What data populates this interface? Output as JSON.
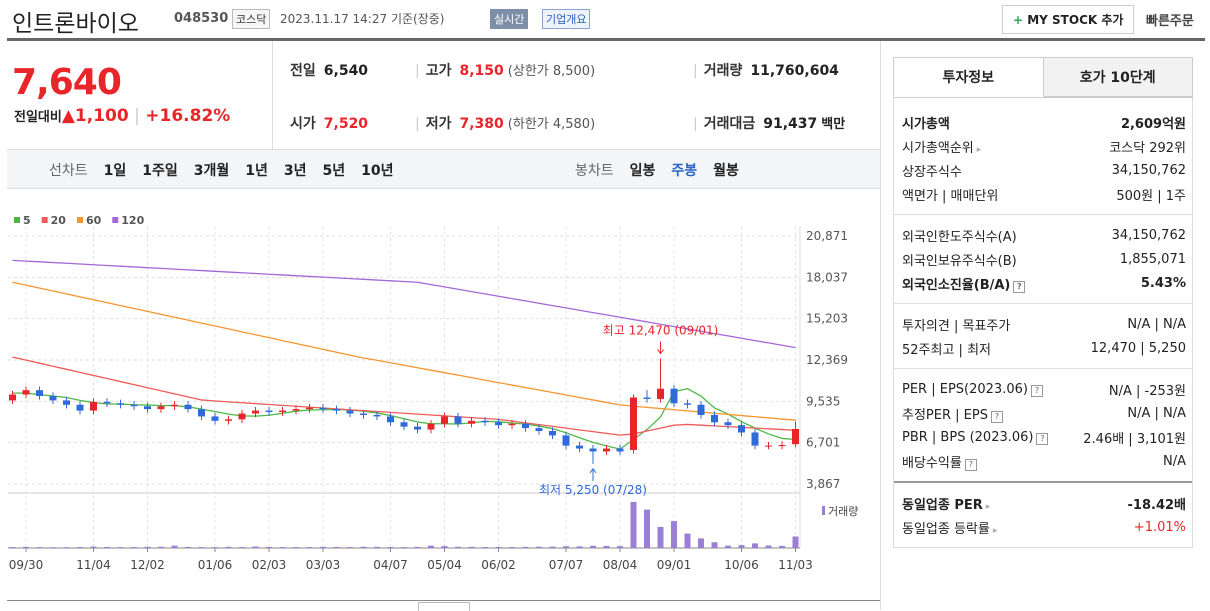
{
  "header": {
    "name": "인트론바이오",
    "code": "048530",
    "market": "코스닥",
    "datetime": "2023.11.17 14:27",
    "status": "기준(장중)",
    "realtime": "실시간",
    "company": "기업개요",
    "mystock": "MY STOCK 추가",
    "quick_order": "빠른주문"
  },
  "price": {
    "current": "7,640",
    "change_label": "전일대비",
    "change": "1,100",
    "rate": "+16.82%"
  },
  "quote": [
    [
      {
        "label": "전일",
        "value": "6,540"
      },
      {
        "label": "고가",
        "value": "8,150",
        "note": "(상한가 8,500)"
      },
      {
        "label": "거래량",
        "value": "11,760,604"
      }
    ],
    [
      {
        "label": "시가",
        "value": "7,520"
      },
      {
        "label": "저가",
        "value": "7,380",
        "note": "(하한가 4,580)"
      },
      {
        "label": "거래대금",
        "value": "91,437",
        "note": "백만"
      }
    ]
  ],
  "period_bar": {
    "line_label": "선차트",
    "line_periods": [
      "1일",
      "1주일",
      "3개월",
      "1년",
      "3년",
      "5년",
      "10년"
    ],
    "candle_label": "봉차트",
    "candle_periods": [
      "일봉",
      "주봉",
      "월봉"
    ],
    "active_candle": 1
  },
  "chart_data": {
    "type": "candlestick",
    "up_color": "#e8262a",
    "down_color": "#2e6bd9",
    "categories": [
      null,
      "09/30",
      null,
      null,
      null,
      null,
      "11/04",
      null,
      null,
      null,
      "12/02",
      null,
      null,
      null,
      null,
      "01/06",
      null,
      null,
      null,
      "02/03",
      null,
      null,
      null,
      "03/03",
      null,
      null,
      null,
      null,
      "04/07",
      null,
      null,
      null,
      "05/04",
      null,
      null,
      null,
      "06/02",
      null,
      null,
      null,
      null,
      "07/07",
      null,
      null,
      null,
      "08/04",
      null,
      null,
      null,
      "09/01",
      null,
      null,
      null,
      null,
      "10/06",
      null,
      null,
      null,
      "11/03"
    ],
    "open": [
      9600,
      10000,
      10300,
      9900,
      9600,
      9300,
      8900,
      9500,
      9400,
      9300,
      9200,
      9000,
      9200,
      9300,
      9000,
      8500,
      8200,
      8300,
      8700,
      8900,
      8800,
      8900,
      9000,
      9100,
      9000,
      8900,
      8700,
      8600,
      8500,
      8100,
      7800,
      7600,
      8000,
      8500,
      8000,
      8200,
      8100,
      7900,
      8000,
      7700,
      7500,
      7200,
      6500,
      6300,
      6100,
      6300,
      6200,
      9800,
      9700,
      10400,
      9400,
      9300,
      8600,
      8100,
      7900,
      7400,
      6500,
      6500,
      6600
    ],
    "high": [
      10250,
      10550,
      10550,
      10150,
      9850,
      9550,
      9750,
      9750,
      9650,
      9550,
      9450,
      9450,
      9550,
      9550,
      9250,
      8750,
      8550,
      8950,
      9150,
      9150,
      9150,
      9250,
      9350,
      9350,
      9250,
      9150,
      8950,
      8850,
      8750,
      8350,
      8050,
      8250,
      8750,
      8750,
      8450,
      8450,
      8350,
      8250,
      8250,
      7950,
      7750,
      7450,
      6750,
      6550,
      6550,
      6550,
      10000,
      10300,
      12470,
      10650,
      9650,
      9550,
      8850,
      8350,
      8150,
      7650,
      6750,
      6800,
      8150
    ],
    "low": [
      9350,
      9750,
      9650,
      9350,
      9050,
      8650,
      8650,
      9150,
      9050,
      8950,
      8750,
      8750,
      8950,
      8750,
      8250,
      7950,
      7950,
      8050,
      8450,
      8550,
      8550,
      8650,
      8750,
      8750,
      8650,
      8450,
      8350,
      8250,
      7850,
      7550,
      7350,
      7350,
      7750,
      7750,
      7750,
      7850,
      7650,
      7650,
      7450,
      7250,
      6950,
      6250,
      6050,
      5250,
      5850,
      5850,
      5950,
      9450,
      9450,
      9150,
      9050,
      8350,
      7850,
      7650,
      7150,
      6250,
      6250,
      6250,
      6400
    ],
    "close": [
      10000,
      10300,
      9900,
      9600,
      9300,
      8900,
      9500,
      9400,
      9300,
      9200,
      9000,
      9200,
      9300,
      9000,
      8500,
      8200,
      8300,
      8700,
      8900,
      8800,
      8900,
      9000,
      9100,
      9000,
      8900,
      8700,
      8600,
      8500,
      8100,
      7800,
      7600,
      8000,
      8500,
      8000,
      8200,
      8100,
      7900,
      8000,
      7700,
      7500,
      7200,
      6500,
      6300,
      6100,
      6300,
      6100,
      9800,
      9700,
      10400,
      9400,
      9300,
      8600,
      8100,
      7900,
      7400,
      6500,
      6500,
      6540,
      7640
    ],
    "series": [
      {
        "name": "5",
        "color": "#4db848",
        "values": [
          10100,
          10100,
          10000,
          9900,
          9800,
          9600,
          9450,
          9350,
          9350,
          9300,
          9280,
          9240,
          9240,
          9160,
          9000,
          8840,
          8660,
          8540,
          8520,
          8580,
          8720,
          8860,
          8940,
          8960,
          8980,
          8940,
          8860,
          8740,
          8560,
          8340,
          8120,
          8000,
          8000,
          7980,
          8060,
          8160,
          8140,
          8040,
          7980,
          7840,
          7660,
          7380,
          7040,
          6720,
          6480,
          6260,
          6920,
          7600,
          8460,
          10200,
          10400,
          9900,
          9080,
          8660,
          8140,
          7700,
          7300,
          6990,
          6920
        ]
      },
      {
        "name": "20",
        "color": "#f05a5a",
        "values": [
          12570,
          12360,
          12150,
          11940,
          11730,
          11520,
          11310,
          11100,
          10890,
          10680,
          10470,
          10260,
          10050,
          9840,
          9630,
          9560,
          9500,
          9440,
          9380,
          9320,
          9260,
          9200,
          9140,
          9080,
          9020,
          8960,
          8900,
          8840,
          8780,
          8720,
          8660,
          8600,
          8540,
          8480,
          8420,
          8360,
          8300,
          8180,
          8060,
          7940,
          7820,
          7700,
          7580,
          7460,
          7340,
          7220,
          7300,
          7500,
          7700,
          7900,
          7950,
          7900,
          7850,
          7800,
          7750,
          7700,
          7650,
          7600,
          7550
        ]
      },
      {
        "name": "60",
        "color": "#f7952f",
        "values": [
          17700,
          17500,
          17300,
          17100,
          16900,
          16700,
          16500,
          16300,
          16100,
          15900,
          15700,
          15500,
          15300,
          15100,
          14900,
          14700,
          14500,
          14300,
          14100,
          13900,
          13700,
          13500,
          13300,
          13100,
          12900,
          12700,
          12500,
          12350,
          12180,
          12010,
          11840,
          11670,
          11500,
          11330,
          11160,
          10990,
          10820,
          10650,
          10480,
          10310,
          10140,
          9970,
          9800,
          9630,
          9460,
          9290,
          9200,
          9120,
          9040,
          8960,
          8880,
          8800,
          8720,
          8640,
          8560,
          8480,
          8400,
          8320,
          8250
        ]
      },
      {
        "name": "120",
        "color": "#a468d6",
        "values": [
          19200,
          19150,
          19100,
          19050,
          19000,
          18950,
          18900,
          18850,
          18800,
          18750,
          18700,
          18650,
          18600,
          18550,
          18500,
          18450,
          18400,
          18350,
          18300,
          18250,
          18200,
          18150,
          18100,
          18050,
          18000,
          17950,
          17900,
          17850,
          17800,
          17750,
          17700,
          17540,
          17380,
          17220,
          17060,
          16900,
          16740,
          16580,
          16420,
          16260,
          16100,
          15940,
          15780,
          15620,
          15460,
          15300,
          15140,
          14980,
          14820,
          14660,
          14500,
          14340,
          14180,
          14020,
          13860,
          13700,
          13540,
          13380,
          13220
        ]
      }
    ],
    "ylim": [
      3867,
      20871
    ],
    "yticks": [
      {
        "value": 3867,
        "label": "3,867"
      },
      {
        "value": 6701,
        "label": "6,701"
      },
      {
        "value": 9535,
        "label": "9,535"
      },
      {
        "value": 12369,
        "label": "12,369"
      },
      {
        "value": 15203,
        "label": "15,203"
      },
      {
        "value": 18037,
        "label": "18,037"
      },
      {
        "value": 20871,
        "label": "20,871"
      }
    ],
    "grid": true,
    "volume_label": "거래량",
    "volume_color": "#9b7fd4",
    "volume_ylim": [
      0,
      50000000
    ],
    "volume": [
      1000000,
      1200000,
      900000,
      800000,
      900000,
      1000000,
      1500000,
      1100000,
      900000,
      1000000,
      1200000,
      1300000,
      2500000,
      1100000,
      1000000,
      900000,
      1200000,
      1000000,
      1600000,
      1100000,
      1000000,
      900000,
      1000000,
      1200000,
      1100000,
      1000000,
      1300000,
      1200000,
      1000000,
      900000,
      1100000,
      2400000,
      2000000,
      1300000,
      1200000,
      1000000,
      1100000,
      1000000,
      1200000,
      1300000,
      1400000,
      1800000,
      1700000,
      2300000,
      2200000,
      1900000,
      48000000,
      40000000,
      22000000,
      28000000,
      15000000,
      10000000,
      6000000,
      2400000,
      3000000,
      4800000,
      2600000,
      2200000,
      12000000
    ],
    "high_note": "최고 12,470 (09/01)",
    "low_note": "최저 5,250 (07/28)",
    "high_index": 48,
    "low_index": 43
  },
  "invest": {
    "tabs": [
      "투자정보",
      "호가 10단계"
    ],
    "sections": [
      [
        {
          "label": "시가총액",
          "value": "2,609억원",
          "bold": true
        },
        {
          "label": "시가총액순위",
          "value": "코스닥 292위",
          "link": true
        },
        {
          "label": "상장주식수",
          "value": "34,150,762"
        },
        {
          "label": "액면가 | 매매단위",
          "value": "500원 | 1주"
        }
      ],
      [
        {
          "label": "외국인한도주식수(A)",
          "value": "34,150,762"
        },
        {
          "label": "외국인보유주식수(B)",
          "value": "1,855,071"
        },
        {
          "label": "외국인소진율(B/A)",
          "value": "5.43%",
          "bold": true,
          "help": true
        }
      ],
      [
        {
          "label": "투자의견 | 목표주가",
          "value": "N/A | N/A"
        },
        {
          "label": "52주최고 | 최저",
          "value": "12,470 | 5,250"
        }
      ],
      [
        {
          "label": "PER | EPS(2023.06)",
          "value": "N/A | -253원",
          "help": true
        },
        {
          "label": "추정PER | EPS",
          "value": "N/A | N/A",
          "help": true
        },
        {
          "label": "PBR | BPS (2023.06)",
          "value": "2.46배 | 3,101원",
          "help": true
        },
        {
          "label": "배당수익률",
          "value": "N/A",
          "help": true
        }
      ],
      [
        {
          "label": "동일업종 PER",
          "value": "-18.42배",
          "bold": true,
          "link": true
        },
        {
          "label": "동일업종 등락률",
          "value": "+1.01%",
          "link": true,
          "color": "#e8262a"
        }
      ]
    ]
  }
}
